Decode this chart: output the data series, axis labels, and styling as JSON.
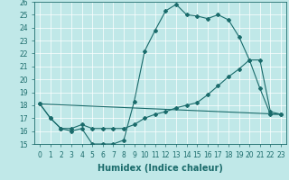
{
  "xlabel": "Humidex (Indice chaleur)",
  "bg_color": "#c0e8e8",
  "grid_color": "#ffffff",
  "line_color": "#1a6b6b",
  "xlim": [
    -0.5,
    23.5
  ],
  "ylim": [
    15,
    26
  ],
  "yticks": [
    15,
    16,
    17,
    18,
    19,
    20,
    21,
    22,
    23,
    24,
    25,
    26
  ],
  "xticks": [
    0,
    1,
    2,
    3,
    4,
    5,
    6,
    7,
    8,
    9,
    10,
    11,
    12,
    13,
    14,
    15,
    16,
    17,
    18,
    19,
    20,
    21,
    22,
    23
  ],
  "line1_x": [
    0,
    1,
    2,
    3,
    4,
    5,
    6,
    7,
    8,
    9,
    10,
    11,
    12,
    13,
    14,
    15,
    16,
    17,
    18,
    19,
    20,
    21,
    22,
    23
  ],
  "line1_y": [
    18.1,
    17.0,
    16.2,
    16.0,
    16.2,
    15.0,
    15.0,
    15.0,
    15.3,
    18.3,
    22.2,
    23.8,
    25.3,
    25.8,
    25.0,
    24.9,
    24.7,
    25.0,
    24.6,
    23.3,
    21.5,
    19.3,
    17.3,
    17.3
  ],
  "line2_x": [
    0,
    1,
    2,
    3,
    4,
    5,
    6,
    7,
    8,
    9,
    10,
    11,
    12,
    13,
    14,
    15,
    16,
    17,
    18,
    19,
    20,
    21,
    22,
    23
  ],
  "line2_y": [
    18.1,
    17.0,
    16.2,
    16.2,
    16.5,
    16.2,
    16.2,
    16.2,
    16.2,
    16.5,
    17.0,
    17.3,
    17.5,
    17.8,
    18.0,
    18.2,
    18.8,
    19.5,
    20.2,
    20.8,
    21.5,
    21.5,
    17.5,
    17.3
  ],
  "line3_x": [
    0,
    23
  ],
  "line3_y": [
    18.1,
    17.3
  ],
  "xlabel_fontsize": 7,
  "tick_fontsize": 5.5,
  "linewidth": 0.8,
  "markersize": 2.0
}
